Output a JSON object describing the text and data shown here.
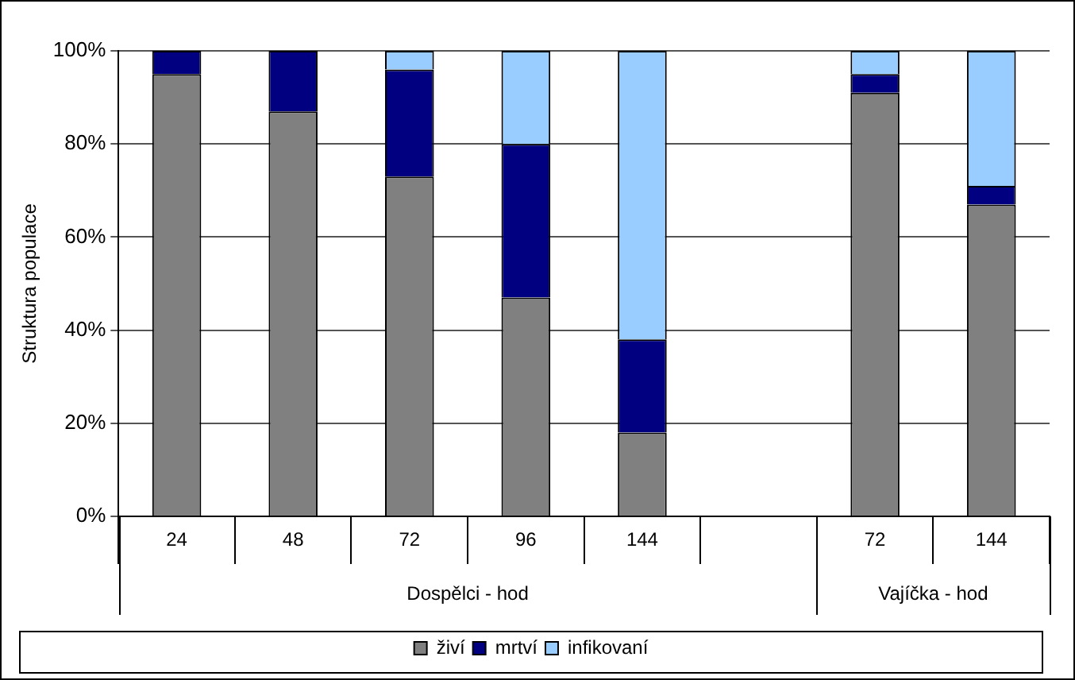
{
  "chart_data": {
    "type": "bar",
    "stacked": true,
    "ylabel": "Struktura populace",
    "categories": [
      "24",
      "48",
      "72",
      "96",
      "144",
      null,
      "72",
      "144"
    ],
    "series": [
      {
        "name": "živí",
        "color": "#808080",
        "values": [
          95,
          87,
          73,
          47,
          18,
          null,
          91,
          67
        ]
      },
      {
        "name": "mrtví",
        "color": "#000080",
        "values": [
          5,
          13,
          23,
          33,
          20,
          null,
          4,
          4
        ]
      },
      {
        "name": "infikovaní",
        "color": "#99ccff",
        "values": [
          0,
          0,
          4,
          20,
          62,
          null,
          5,
          29
        ]
      }
    ],
    "ylim": [
      0,
      100
    ],
    "yticks": [
      {
        "value": 0,
        "label": "0%"
      },
      {
        "value": 20,
        "label": "20%"
      },
      {
        "value": 40,
        "label": "40%"
      },
      {
        "value": 60,
        "label": "60%"
      },
      {
        "value": 80,
        "label": "80%"
      },
      {
        "value": 100,
        "label": "100%"
      }
    ],
    "annotations": [
      "Dospělci - hod",
      "Vajíčka - hod"
    ],
    "grid": "y",
    "legend": "bottom"
  }
}
